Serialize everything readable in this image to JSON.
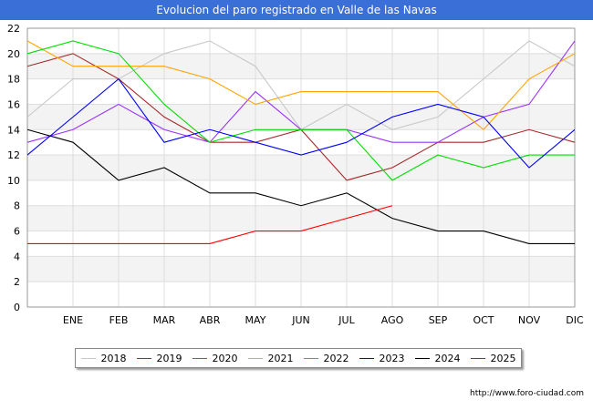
{
  "header": {
    "title": "Evolucion del paro registrado en Valle de las Navas"
  },
  "footer": {
    "url": "http://www.foro-ciudad.com"
  },
  "chart_data": {
    "type": "line",
    "title": "Evolucion del paro registrado en Valle de las Navas",
    "xlabel": "",
    "ylabel": "",
    "categories": [
      "",
      "ENE",
      "FEB",
      "MAR",
      "ABR",
      "MAY",
      "JUN",
      "JUL",
      "AGO",
      "SEP",
      "OCT",
      "NOV",
      "DIC"
    ],
    "ylim": [
      0,
      22
    ],
    "yticks": [
      0,
      2,
      4,
      6,
      8,
      10,
      12,
      14,
      16,
      18,
      20,
      22
    ],
    "grid": true,
    "legend_position": "bottom",
    "series": [
      {
        "name": "2018",
        "color": "#c8c8c8",
        "values": [
          15,
          18,
          18,
          20,
          21,
          19,
          14,
          16,
          14,
          15,
          18,
          21,
          19
        ]
      },
      {
        "name": "2019",
        "color": "#a52a2a",
        "values": [
          19,
          20,
          18,
          15,
          13,
          13,
          14,
          10,
          11,
          13,
          13,
          14,
          13
        ]
      },
      {
        "name": "2020",
        "color": "#9b30ff",
        "values": [
          13,
          14,
          16,
          14,
          13,
          17,
          14,
          14,
          13,
          13,
          15,
          16,
          21
        ]
      },
      {
        "name": "2021",
        "color": "#ffa500",
        "values": [
          21,
          19,
          19,
          19,
          18,
          16,
          17,
          17,
          17,
          17,
          14,
          18,
          20
        ]
      },
      {
        "name": "2022",
        "color": "#00e000",
        "values": [
          20,
          21,
          20,
          16,
          13,
          14,
          14,
          14,
          10,
          12,
          11,
          12,
          12
        ]
      },
      {
        "name": "2023",
        "color": "#0000ff",
        "values": [
          12,
          15,
          18,
          13,
          14,
          13,
          12,
          13,
          15,
          16,
          15,
          11,
          14
        ]
      },
      {
        "name": "2024",
        "color": "#000000",
        "values": [
          14,
          13,
          10,
          11,
          9,
          9,
          8,
          9,
          7,
          6,
          6,
          5,
          5
        ]
      },
      {
        "name": "2025",
        "color": "#ff0000",
        "values": [
          5,
          5,
          5,
          5,
          5,
          6,
          6,
          7,
          8,
          null,
          null,
          null,
          null
        ]
      }
    ]
  }
}
